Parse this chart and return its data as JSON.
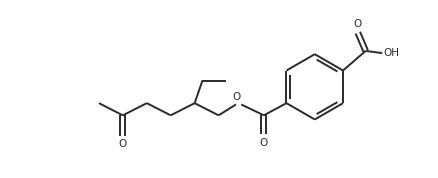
{
  "bg_color": "#ffffff",
  "line_color": "#2a2a2a",
  "line_width": 1.4,
  "figsize": [
    4.38,
    1.78
  ],
  "dpi": 100,
  "xlim": [
    0,
    10
  ],
  "ylim": [
    0,
    4
  ]
}
